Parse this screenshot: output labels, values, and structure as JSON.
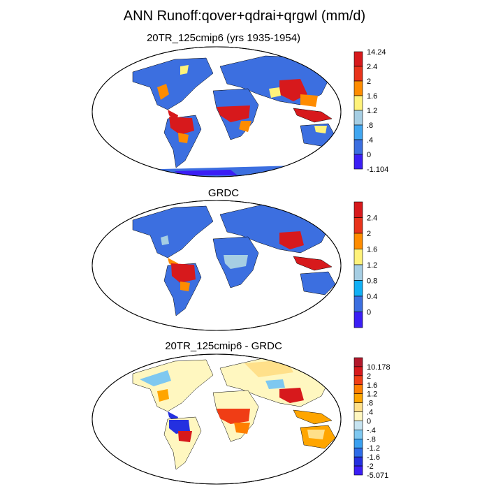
{
  "title": "ANN Runoff:qover+qdrai+qrgwl (mm/d)",
  "panels": [
    {
      "id": "p1",
      "title": "20TR_125cmip6 (yrs 1935-1954)",
      "colorbar": {
        "labels": [
          "14.24",
          "2.4",
          "2",
          "1.6",
          "1.2",
          ".8",
          ".4",
          "0",
          "-1.104"
        ],
        "colors": [
          "#d7191c",
          "#e8331b",
          "#ff8c00",
          "#fff27a",
          "#a6cee3",
          "#41a6f0",
          "#3c6fe0",
          "#3b1ef5"
        ]
      }
    },
    {
      "id": "p2",
      "title": "GRDC",
      "colorbar": {
        "labels": [
          "2.4",
          "2",
          "1.6",
          "1.2",
          "0.8",
          "0.4",
          "0"
        ],
        "colors": [
          "#d7191c",
          "#e8331b",
          "#ff8c00",
          "#fff27a",
          "#a6cee3",
          "#12b0f5",
          "#3c6fe0",
          "#3b1ef5"
        ]
      }
    },
    {
      "id": "p3",
      "title": "20TR_125cmip6 - GRDC",
      "colorbar": {
        "labels": [
          "10.178",
          "2",
          "1.6",
          "1.2",
          ".8",
          ".4",
          "0",
          "-.4",
          "-.8",
          "-1.2",
          "-1.6",
          "-2",
          "-5.071"
        ],
        "colors": [
          "#b2182b",
          "#d7191c",
          "#f03d15",
          "#ff7f00",
          "#ffa500",
          "#ffe08a",
          "#fff7c0",
          "#c6e3f0",
          "#7ec8f0",
          "#3aa0f0",
          "#2d6ce8",
          "#2430e0",
          "#3b1ef5"
        ]
      }
    }
  ]
}
